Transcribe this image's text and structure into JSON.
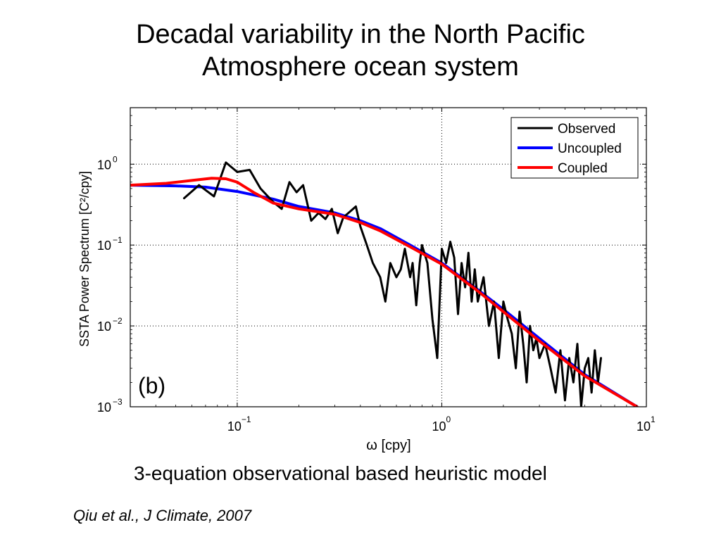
{
  "slide": {
    "title_line1": "Decadal variability in the North Pacific",
    "title_line2": "Atmosphere ocean system",
    "subtitle": "3-equation observational based heuristic model",
    "citation": "Qiu et al., J Climate, 2007"
  },
  "chart_data": {
    "type": "line",
    "panel_label": "(b)",
    "xlabel": "ω [cpy]",
    "ylabel": "SSTA Power Spectrum [C²/cpy]",
    "xscale": "log",
    "yscale": "log",
    "xlim": [
      0.03,
      10
    ],
    "ylim": [
      0.001,
      5
    ],
    "grid": true,
    "legend_position": "top-right",
    "x_ticks": [
      {
        "value": 0.1,
        "base": "10",
        "exp": "−1"
      },
      {
        "value": 1,
        "base": "10",
        "exp": "0"
      },
      {
        "value": 10,
        "base": "10",
        "exp": "1"
      }
    ],
    "y_ticks": [
      {
        "value": 0.001,
        "base": "10",
        "exp": "−3"
      },
      {
        "value": 0.01,
        "base": "10",
        "exp": "−2"
      },
      {
        "value": 0.1,
        "base": "10",
        "exp": "−1"
      },
      {
        "value": 1,
        "base": "10",
        "exp": "0"
      }
    ],
    "series": [
      {
        "name": "Observed",
        "color": "#000000",
        "x": [
          0.055,
          0.065,
          0.077,
          0.088,
          0.1,
          0.115,
          0.13,
          0.15,
          0.165,
          0.18,
          0.195,
          0.21,
          0.23,
          0.25,
          0.27,
          0.29,
          0.31,
          0.33,
          0.35,
          0.38,
          0.4,
          0.43,
          0.46,
          0.5,
          0.53,
          0.56,
          0.6,
          0.63,
          0.66,
          0.7,
          0.72,
          0.75,
          0.78,
          0.8,
          0.85,
          0.9,
          0.95,
          1.0,
          1.05,
          1.1,
          1.15,
          1.2,
          1.25,
          1.3,
          1.35,
          1.4,
          1.45,
          1.5,
          1.6,
          1.7,
          1.8,
          1.9,
          2.0,
          2.1,
          2.2,
          2.3,
          2.4,
          2.5,
          2.6,
          2.7,
          2.8,
          2.9,
          3.0,
          3.2,
          3.4,
          3.6,
          3.8,
          4.0,
          4.2,
          4.4,
          4.6,
          4.8,
          5.0,
          5.2,
          5.4,
          5.6,
          5.8,
          6.0
        ],
        "y": [
          0.38,
          0.55,
          0.4,
          1.05,
          0.8,
          0.85,
          0.5,
          0.34,
          0.28,
          0.6,
          0.45,
          0.55,
          0.2,
          0.25,
          0.21,
          0.28,
          0.14,
          0.22,
          0.25,
          0.3,
          0.17,
          0.1,
          0.06,
          0.04,
          0.02,
          0.06,
          0.04,
          0.05,
          0.09,
          0.04,
          0.06,
          0.018,
          0.06,
          0.1,
          0.06,
          0.012,
          0.004,
          0.09,
          0.06,
          0.11,
          0.07,
          0.014,
          0.06,
          0.03,
          0.08,
          0.02,
          0.05,
          0.02,
          0.04,
          0.01,
          0.02,
          0.004,
          0.02,
          0.012,
          0.008,
          0.003,
          0.015,
          0.006,
          0.002,
          0.01,
          0.005,
          0.007,
          0.004,
          0.006,
          0.003,
          0.0015,
          0.005,
          0.0012,
          0.004,
          0.002,
          0.006,
          0.001,
          0.003,
          0.004,
          0.0015,
          0.005,
          0.002,
          0.004
        ]
      },
      {
        "name": "Uncoupled",
        "color": "#0000ff",
        "x": [
          0.03,
          0.05,
          0.07,
          0.1,
          0.15,
          0.2,
          0.3,
          0.4,
          0.5,
          0.7,
          1.0,
          1.5,
          2.0,
          3.0,
          5.0,
          9.0
        ],
        "y": [
          0.55,
          0.54,
          0.52,
          0.46,
          0.37,
          0.3,
          0.25,
          0.2,
          0.16,
          0.1,
          0.06,
          0.028,
          0.016,
          0.007,
          0.0025,
          0.001
        ]
      },
      {
        "name": "Coupled",
        "color": "#ff0000",
        "x": [
          0.03,
          0.045,
          0.06,
          0.075,
          0.088,
          0.1,
          0.12,
          0.15,
          0.2,
          0.3,
          0.4,
          0.5,
          0.7,
          1.0,
          1.5,
          2.0,
          3.0,
          5.0,
          9.0
        ],
        "y": [
          0.55,
          0.58,
          0.63,
          0.67,
          0.66,
          0.6,
          0.45,
          0.33,
          0.28,
          0.24,
          0.19,
          0.15,
          0.095,
          0.058,
          0.027,
          0.015,
          0.0065,
          0.0024,
          0.001
        ]
      }
    ]
  }
}
